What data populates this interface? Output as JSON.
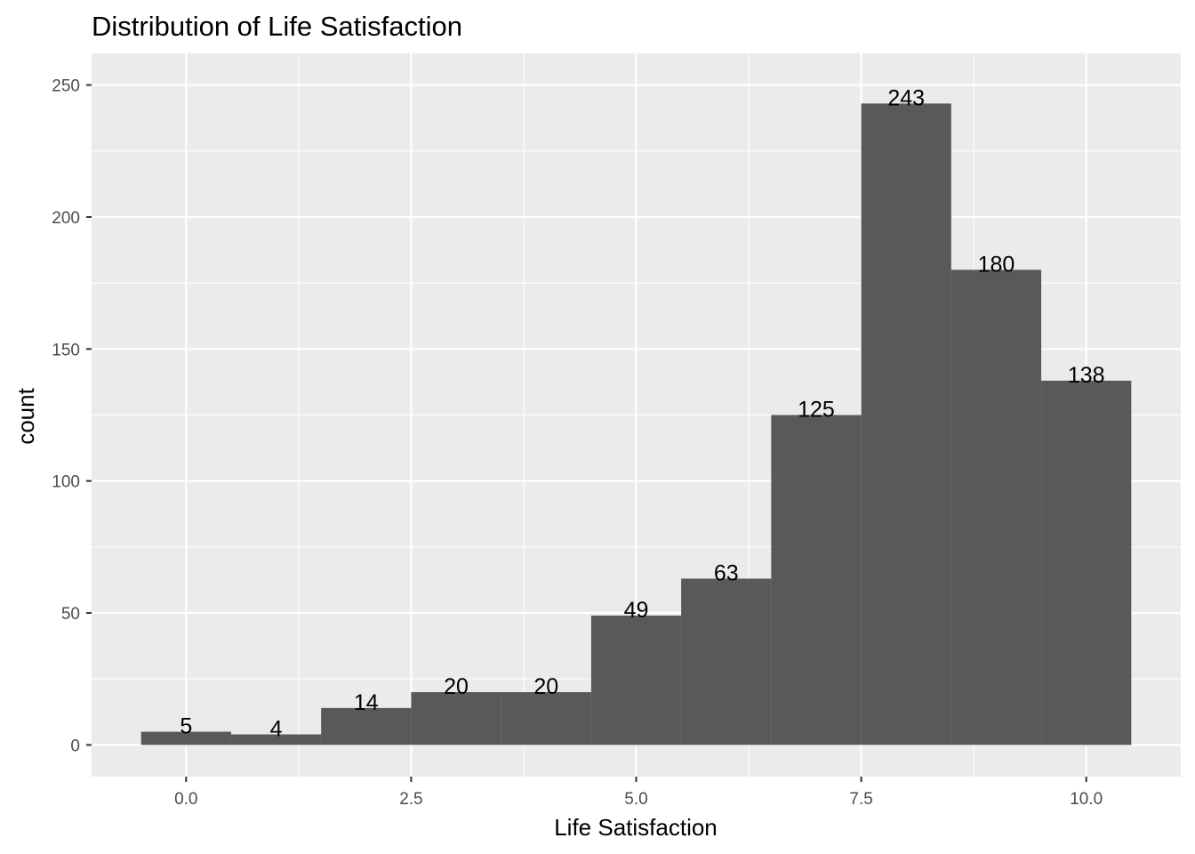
{
  "chart_data": {
    "type": "bar",
    "title": "Distribution of Life Satisfaction",
    "xlabel": "Life Satisfaction",
    "ylabel": "count",
    "bin_width": 1,
    "x": [
      0,
      1,
      2,
      3,
      4,
      5,
      6,
      7,
      8,
      9,
      10
    ],
    "values": [
      5,
      4,
      14,
      20,
      20,
      49,
      63,
      125,
      243,
      180,
      138
    ],
    "data_labels": [
      "5",
      "4",
      "14",
      "20",
      "20",
      "49",
      "63",
      "125",
      "243",
      "180",
      "138"
    ],
    "xlim": [
      -1.05,
      11.05
    ],
    "ylim": [
      -12,
      262
    ],
    "x_ticks": [
      0,
      2.5,
      5,
      7.5,
      10
    ],
    "x_tick_labels": [
      "0.0",
      "2.5",
      "5.0",
      "7.5",
      "10.0"
    ],
    "y_ticks": [
      0,
      50,
      100,
      150,
      200,
      250
    ],
    "y_tick_labels": [
      "0",
      "50",
      "100",
      "150",
      "200",
      "250"
    ],
    "grid": true,
    "colors": {
      "bar": "#595959",
      "panel": "#ebebeb",
      "grid": "#ffffff"
    }
  }
}
